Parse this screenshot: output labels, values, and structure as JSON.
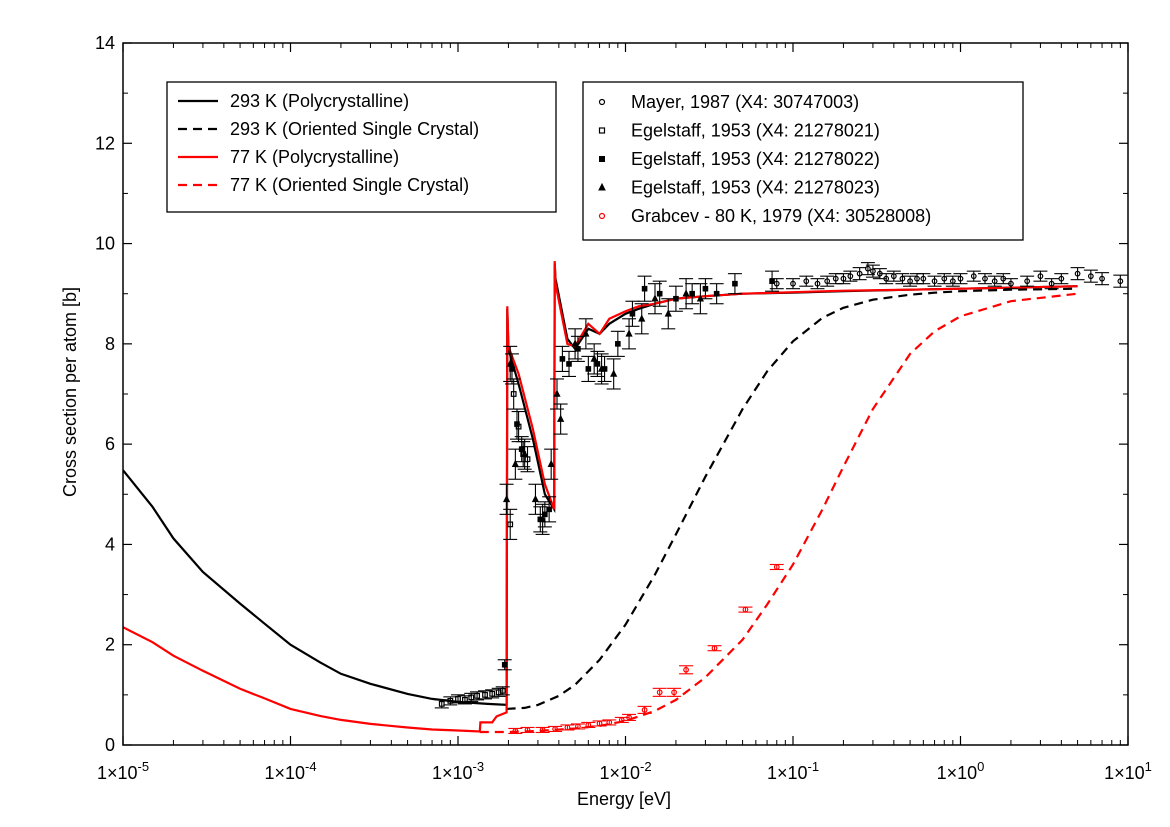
{
  "chart_data": {
    "type": "line",
    "xscale": "log",
    "xlim": [
      1e-05,
      10
    ],
    "ylim": [
      0,
      14
    ],
    "xlabel": "Energy [eV]",
    "ylabel": "Cross section per atom [b]",
    "x_ticks": [
      1e-05,
      0.0001,
      0.001,
      0.01,
      0.1,
      1,
      10
    ],
    "x_tick_labels": [
      "1×10-5",
      "1×10-4",
      "1×10-3",
      "1×10-2",
      "1×10-1",
      "1×100",
      "1×101"
    ],
    "x_tick_parts": [
      {
        "base": "1×10",
        "exp": "-5"
      },
      {
        "base": "1×10",
        "exp": "-4"
      },
      {
        "base": "1×10",
        "exp": "-3"
      },
      {
        "base": "1×10",
        "exp": "-2"
      },
      {
        "base": "1×10",
        "exp": "-1"
      },
      {
        "base": "1×10",
        "exp": "0"
      },
      {
        "base": "1×10",
        "exp": "1"
      }
    ],
    "y_ticks": [
      0,
      2,
      4,
      6,
      8,
      10,
      12,
      14
    ],
    "y_tick_labels": [
      "0",
      "2",
      "4",
      "6",
      "8",
      "10",
      "12",
      "14"
    ],
    "colors": {
      "black": "#000000",
      "red": "#ff0000"
    },
    "legend_lines": [
      {
        "label": "293 K (Polycrystalline)",
        "color": "#000000",
        "dash": "solid"
      },
      {
        "label": "293 K (Oriented Single Crystal)",
        "color": "#000000",
        "dash": "dashed"
      },
      {
        "label": "77 K (Polycrystalline)",
        "color": "#ff0000",
        "dash": "solid"
      },
      {
        "label": "77 K (Oriented Single Crystal)",
        "color": "#ff0000",
        "dash": "dashed"
      }
    ],
    "legend_points": [
      {
        "label": "Mayer, 1987 (X4: 30747003)",
        "color": "#000000",
        "marker": "circle"
      },
      {
        "label": "Egelstaff, 1953 (X4: 21278021)",
        "color": "#000000",
        "marker": "square-open"
      },
      {
        "label": "Egelstaff, 1953 (X4: 21278022)",
        "color": "#000000",
        "marker": "square-filled"
      },
      {
        "label": "Egelstaff, 1953 (X4: 21278023)",
        "color": "#000000",
        "marker": "triangle"
      },
      {
        "label": "Grabcev - 80 K, 1979 (X4: 30528008)",
        "color": "#ff0000",
        "marker": "circle"
      }
    ],
    "series": [
      {
        "name": "293 K (Polycrystalline)",
        "color": "#000000",
        "dash": "solid",
        "x": [
          1e-05,
          1.5e-05,
          2e-05,
          3e-05,
          5e-05,
          7e-05,
          0.0001,
          0.00015,
          0.0002,
          0.0003,
          0.0005,
          0.0007,
          0.001,
          0.0015,
          0.00195,
          0.00197,
          0.002,
          0.0023,
          0.0028,
          0.0033,
          0.00375,
          0.00378,
          0.00382,
          0.0045,
          0.005,
          0.006,
          0.007,
          0.008,
          0.01,
          0.012,
          0.015,
          0.02,
          0.03,
          0.05,
          0.1,
          0.2,
          0.5,
          1,
          2,
          5
        ],
        "y": [
          5.48,
          4.75,
          4.12,
          3.45,
          2.82,
          2.42,
          2.0,
          1.65,
          1.42,
          1.22,
          1.02,
          0.92,
          0.86,
          0.82,
          0.8,
          8.7,
          7.9,
          7.2,
          6.1,
          5.0,
          4.7,
          9.6,
          9.3,
          8.1,
          7.9,
          8.3,
          8.2,
          8.4,
          8.6,
          8.7,
          8.8,
          8.9,
          8.95,
          9.0,
          9.02,
          9.05,
          9.08,
          9.1,
          9.12,
          9.15
        ]
      },
      {
        "name": "293 K (Oriented Single Crystal)",
        "color": "#000000",
        "dash": "dashed",
        "x": [
          0.00195,
          0.0025,
          0.003,
          0.004,
          0.005,
          0.007,
          0.01,
          0.015,
          0.02,
          0.03,
          0.05,
          0.07,
          0.1,
          0.15,
          0.2,
          0.3,
          0.5,
          0.7,
          1,
          2,
          5
        ],
        "y": [
          0.72,
          0.74,
          0.8,
          0.98,
          1.2,
          1.7,
          2.4,
          3.4,
          4.2,
          5.35,
          6.7,
          7.45,
          8.05,
          8.52,
          8.72,
          8.88,
          8.98,
          9.02,
          9.05,
          9.08,
          9.1
        ]
      },
      {
        "name": "77 K (Polycrystalline)",
        "color": "#ff0000",
        "dash": "solid",
        "x": [
          1e-05,
          1.5e-05,
          2e-05,
          3e-05,
          5e-05,
          7e-05,
          0.0001,
          0.00015,
          0.0002,
          0.0003,
          0.0005,
          0.0007,
          0.001,
          0.00135,
          0.00136,
          0.0016,
          0.0017,
          0.00195,
          0.00197,
          0.002,
          0.0023,
          0.0028,
          0.0033,
          0.00375,
          0.00378,
          0.00382,
          0.0045,
          0.005,
          0.006,
          0.007,
          0.008,
          0.01,
          0.012,
          0.015,
          0.02,
          0.03,
          0.05,
          0.1,
          0.2,
          0.5,
          1,
          2,
          5
        ],
        "y": [
          2.35,
          2.05,
          1.78,
          1.48,
          1.12,
          0.93,
          0.72,
          0.58,
          0.5,
          0.42,
          0.35,
          0.31,
          0.29,
          0.27,
          0.45,
          0.45,
          0.57,
          0.65,
          8.75,
          7.95,
          7.4,
          6.3,
          5.2,
          4.7,
          9.65,
          9.2,
          8.0,
          7.95,
          8.4,
          8.2,
          8.5,
          8.65,
          8.75,
          8.8,
          8.9,
          8.95,
          9.0,
          9.03,
          9.06,
          9.08,
          9.1,
          9.12,
          9.15
        ]
      },
      {
        "name": "77 K (Oriented Single Crystal)",
        "color": "#ff0000",
        "dash": "dashed",
        "x": [
          0.00135,
          0.002,
          0.003,
          0.005,
          0.007,
          0.01,
          0.015,
          0.02,
          0.03,
          0.05,
          0.07,
          0.1,
          0.15,
          0.2,
          0.3,
          0.5,
          0.7,
          1,
          2,
          5
        ],
        "y": [
          0.26,
          0.26,
          0.28,
          0.33,
          0.38,
          0.48,
          0.68,
          0.9,
          1.35,
          2.1,
          2.8,
          3.6,
          4.7,
          5.55,
          6.7,
          7.8,
          8.25,
          8.55,
          8.85,
          9.0
        ]
      }
    ],
    "points": [
      {
        "name": "Mayer, 1987 (X4: 30747003)",
        "marker": "circle",
        "color": "#000000",
        "x": [
          0.08,
          0.1,
          0.12,
          0.14,
          0.16,
          0.18,
          0.2,
          0.22,
          0.25,
          0.28,
          0.3,
          0.33,
          0.36,
          0.4,
          0.45,
          0.5,
          0.55,
          0.6,
          0.7,
          0.8,
          0.9,
          1.0,
          1.2,
          1.4,
          1.6,
          1.8,
          2.0,
          2.5,
          3.0,
          3.5,
          4.0,
          5.0,
          6.0,
          7.0,
          9.0
        ],
        "y": [
          9.2,
          9.2,
          9.25,
          9.2,
          9.25,
          9.3,
          9.3,
          9.35,
          9.4,
          9.5,
          9.45,
          9.4,
          9.3,
          9.35,
          9.3,
          9.25,
          9.3,
          9.3,
          9.25,
          9.3,
          9.25,
          9.3,
          9.35,
          9.3,
          9.25,
          9.3,
          9.2,
          9.25,
          9.35,
          9.2,
          9.3,
          9.4,
          9.35,
          9.3,
          9.25
        ],
        "err": [
          0.1,
          0.1,
          0.1,
          0.1,
          0.1,
          0.1,
          0.1,
          0.1,
          0.12,
          0.12,
          0.12,
          0.1,
          0.1,
          0.1,
          0.1,
          0.1,
          0.1,
          0.1,
          0.1,
          0.1,
          0.1,
          0.1,
          0.1,
          0.1,
          0.1,
          0.1,
          0.1,
          0.1,
          0.1,
          0.1,
          0.1,
          0.12,
          0.12,
          0.12,
          0.12
        ]
      },
      {
        "name": "Egelstaff, 1953 (X4: 21278021)",
        "marker": "square-open",
        "color": "#000000",
        "x": [
          0.0008,
          0.0009,
          0.001,
          0.0011,
          0.0012,
          0.0013,
          0.00145,
          0.0016,
          0.00175,
          0.00185,
          0.00205,
          0.00215,
          0.0023,
          0.00245,
          0.0026
        ],
        "y": [
          0.82,
          0.88,
          0.92,
          0.9,
          0.95,
          0.98,
          1.0,
          1.02,
          1.05,
          1.08,
          4.4,
          7.0,
          6.35,
          5.8,
          5.7
        ],
        "err": [
          0.08,
          0.08,
          0.08,
          0.08,
          0.08,
          0.08,
          0.08,
          0.08,
          0.08,
          0.08,
          0.3,
          0.3,
          0.3,
          0.25,
          0.25
        ]
      },
      {
        "name": "Egelstaff, 1953 (X4: 21278022)",
        "marker": "square-filled",
        "color": "#000000",
        "x": [
          0.0019,
          0.0021,
          0.00225,
          0.0024,
          0.0031,
          0.0033,
          0.0035,
          0.0042,
          0.0046,
          0.0052,
          0.006,
          0.0068,
          0.0075,
          0.009,
          0.011,
          0.013,
          0.016,
          0.02,
          0.025,
          0.03,
          0.035,
          0.045,
          0.075
        ],
        "y": [
          1.6,
          7.5,
          6.4,
          5.9,
          4.5,
          4.6,
          4.7,
          7.7,
          7.6,
          7.9,
          7.5,
          7.6,
          7.5,
          8.0,
          8.6,
          9.1,
          9.0,
          8.9,
          9.0,
          9.1,
          9.0,
          9.2,
          9.25
        ],
        "err": [
          0.1,
          0.3,
          0.3,
          0.25,
          0.25,
          0.25,
          0.25,
          0.25,
          0.25,
          0.25,
          0.25,
          0.25,
          0.25,
          0.25,
          0.25,
          0.25,
          0.25,
          0.25,
          0.2,
          0.2,
          0.2,
          0.2,
          0.2
        ]
      },
      {
        "name": "Egelstaff, 1953 (X4: 21278023)",
        "marker": "triangle",
        "color": "#000000",
        "x": [
          0.00195,
          0.00205,
          0.0022,
          0.0025,
          0.0029,
          0.0032,
          0.0036,
          0.0039,
          0.0041,
          0.005,
          0.0058,
          0.0065,
          0.0072,
          0.0085,
          0.0105,
          0.0125,
          0.015,
          0.018,
          0.023,
          0.028
        ],
        "y": [
          4.9,
          7.6,
          5.6,
          5.8,
          4.9,
          4.5,
          5.6,
          7.0,
          6.5,
          8.0,
          8.2,
          7.7,
          7.5,
          7.4,
          8.2,
          8.5,
          8.9,
          8.6,
          9.0,
          8.9
        ],
        "err": [
          0.3,
          0.35,
          0.3,
          0.3,
          0.3,
          0.3,
          0.3,
          0.3,
          0.3,
          0.3,
          0.3,
          0.3,
          0.3,
          0.3,
          0.3,
          0.3,
          0.3,
          0.3,
          0.3,
          0.3
        ]
      },
      {
        "name": "Grabcev - 80 K, 1979 (X4: 30528008)",
        "marker": "circle",
        "color": "#ff0000",
        "x": [
          0.0022,
          0.0026,
          0.0032,
          0.0038,
          0.0045,
          0.0052,
          0.006,
          0.007,
          0.008,
          0.0095,
          0.0105,
          0.013,
          0.016,
          0.0195,
          0.023,
          0.034,
          0.052,
          0.08
        ],
        "y": [
          0.28,
          0.3,
          0.3,
          0.32,
          0.35,
          0.37,
          0.4,
          0.43,
          0.45,
          0.5,
          0.55,
          0.7,
          1.05,
          1.05,
          1.5,
          1.93,
          2.7,
          3.55
        ],
        "err": [
          0.05,
          0.05,
          0.05,
          0.05,
          0.05,
          0.05,
          0.05,
          0.05,
          0.05,
          0.05,
          0.06,
          0.07,
          0.08,
          0.08,
          0.08,
          0.05,
          0.05,
          0.05
        ]
      }
    ]
  }
}
